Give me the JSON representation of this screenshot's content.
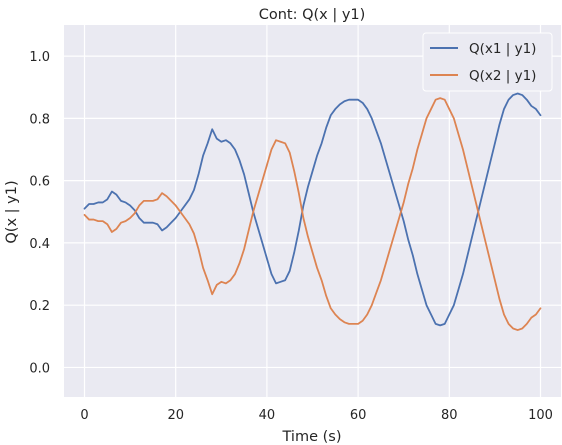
{
  "chart_data": {
    "type": "line",
    "title": "Cont: Q(x | y1)",
    "xlabel": "Time (s)",
    "ylabel": "Q(x | y1)",
    "xlim": [
      -4.5,
      104.5
    ],
    "ylim": [
      -0.095,
      1.1
    ],
    "xticks": [
      0,
      20,
      40,
      60,
      80,
      100
    ],
    "yticks": [
      0.0,
      0.2,
      0.4,
      0.6,
      0.8,
      1.0
    ],
    "xtick_labels": [
      "0",
      "20",
      "40",
      "60",
      "80",
      "100"
    ],
    "ytick_labels": [
      "0.0",
      "0.2",
      "0.4",
      "0.6",
      "0.8",
      "1.0"
    ],
    "grid": true,
    "legend_position": "top-right",
    "background": "#eaeaf2",
    "x": [
      0,
      1,
      2,
      3,
      4,
      5,
      6,
      7,
      8,
      9,
      10,
      11,
      12,
      13,
      14,
      15,
      16,
      17,
      18,
      19,
      20,
      21,
      22,
      23,
      24,
      25,
      26,
      27,
      28,
      29,
      30,
      31,
      32,
      33,
      34,
      35,
      36,
      37,
      38,
      39,
      40,
      41,
      42,
      43,
      44,
      45,
      46,
      47,
      48,
      49,
      50,
      51,
      52,
      53,
      54,
      55,
      56,
      57,
      58,
      59,
      60,
      61,
      62,
      63,
      64,
      65,
      66,
      67,
      68,
      69,
      70,
      71,
      72,
      73,
      74,
      75,
      76,
      77,
      78,
      79,
      80,
      81,
      82,
      83,
      84,
      85,
      86,
      87,
      88,
      89,
      90,
      91,
      92,
      93,
      94,
      95,
      96,
      97,
      98,
      99,
      100
    ],
    "series": [
      {
        "name": "Q(x1 | y1)",
        "color": "#4c72b0",
        "values": [
          0.51,
          0.525,
          0.525,
          0.53,
          0.53,
          0.54,
          0.565,
          0.555,
          0.535,
          0.53,
          0.52,
          0.505,
          0.48,
          0.465,
          0.465,
          0.465,
          0.46,
          0.44,
          0.45,
          0.465,
          0.48,
          0.5,
          0.52,
          0.54,
          0.57,
          0.62,
          0.68,
          0.72,
          0.765,
          0.735,
          0.725,
          0.73,
          0.72,
          0.7,
          0.665,
          0.62,
          0.56,
          0.5,
          0.45,
          0.4,
          0.35,
          0.3,
          0.27,
          0.275,
          0.28,
          0.31,
          0.37,
          0.44,
          0.52,
          0.58,
          0.63,
          0.68,
          0.72,
          0.77,
          0.81,
          0.83,
          0.845,
          0.855,
          0.86,
          0.86,
          0.86,
          0.85,
          0.83,
          0.8,
          0.76,
          0.72,
          0.67,
          0.62,
          0.57,
          0.52,
          0.47,
          0.41,
          0.36,
          0.3,
          0.25,
          0.2,
          0.17,
          0.14,
          0.135,
          0.14,
          0.17,
          0.2,
          0.25,
          0.3,
          0.36,
          0.42,
          0.48,
          0.54,
          0.6,
          0.66,
          0.72,
          0.78,
          0.83,
          0.86,
          0.875,
          0.88,
          0.875,
          0.86,
          0.84,
          0.83,
          0.81
        ]
      },
      {
        "name": "Q(x2 | y1)",
        "color": "#dd8452",
        "values": [
          0.49,
          0.475,
          0.475,
          0.47,
          0.47,
          0.46,
          0.435,
          0.445,
          0.465,
          0.47,
          0.48,
          0.495,
          0.52,
          0.535,
          0.535,
          0.535,
          0.54,
          0.56,
          0.55,
          0.535,
          0.52,
          0.5,
          0.48,
          0.46,
          0.43,
          0.38,
          0.32,
          0.28,
          0.235,
          0.265,
          0.275,
          0.27,
          0.28,
          0.3,
          0.335,
          0.38,
          0.44,
          0.5,
          0.55,
          0.6,
          0.65,
          0.7,
          0.73,
          0.725,
          0.72,
          0.69,
          0.63,
          0.56,
          0.48,
          0.42,
          0.37,
          0.32,
          0.28,
          0.23,
          0.19,
          0.17,
          0.155,
          0.145,
          0.14,
          0.14,
          0.14,
          0.15,
          0.17,
          0.2,
          0.24,
          0.28,
          0.33,
          0.38,
          0.43,
          0.48,
          0.53,
          0.59,
          0.64,
          0.7,
          0.75,
          0.8,
          0.83,
          0.86,
          0.865,
          0.86,
          0.83,
          0.8,
          0.75,
          0.7,
          0.64,
          0.58,
          0.52,
          0.46,
          0.4,
          0.34,
          0.28,
          0.22,
          0.17,
          0.14,
          0.125,
          0.12,
          0.125,
          0.14,
          0.16,
          0.17,
          0.19
        ]
      }
    ]
  }
}
